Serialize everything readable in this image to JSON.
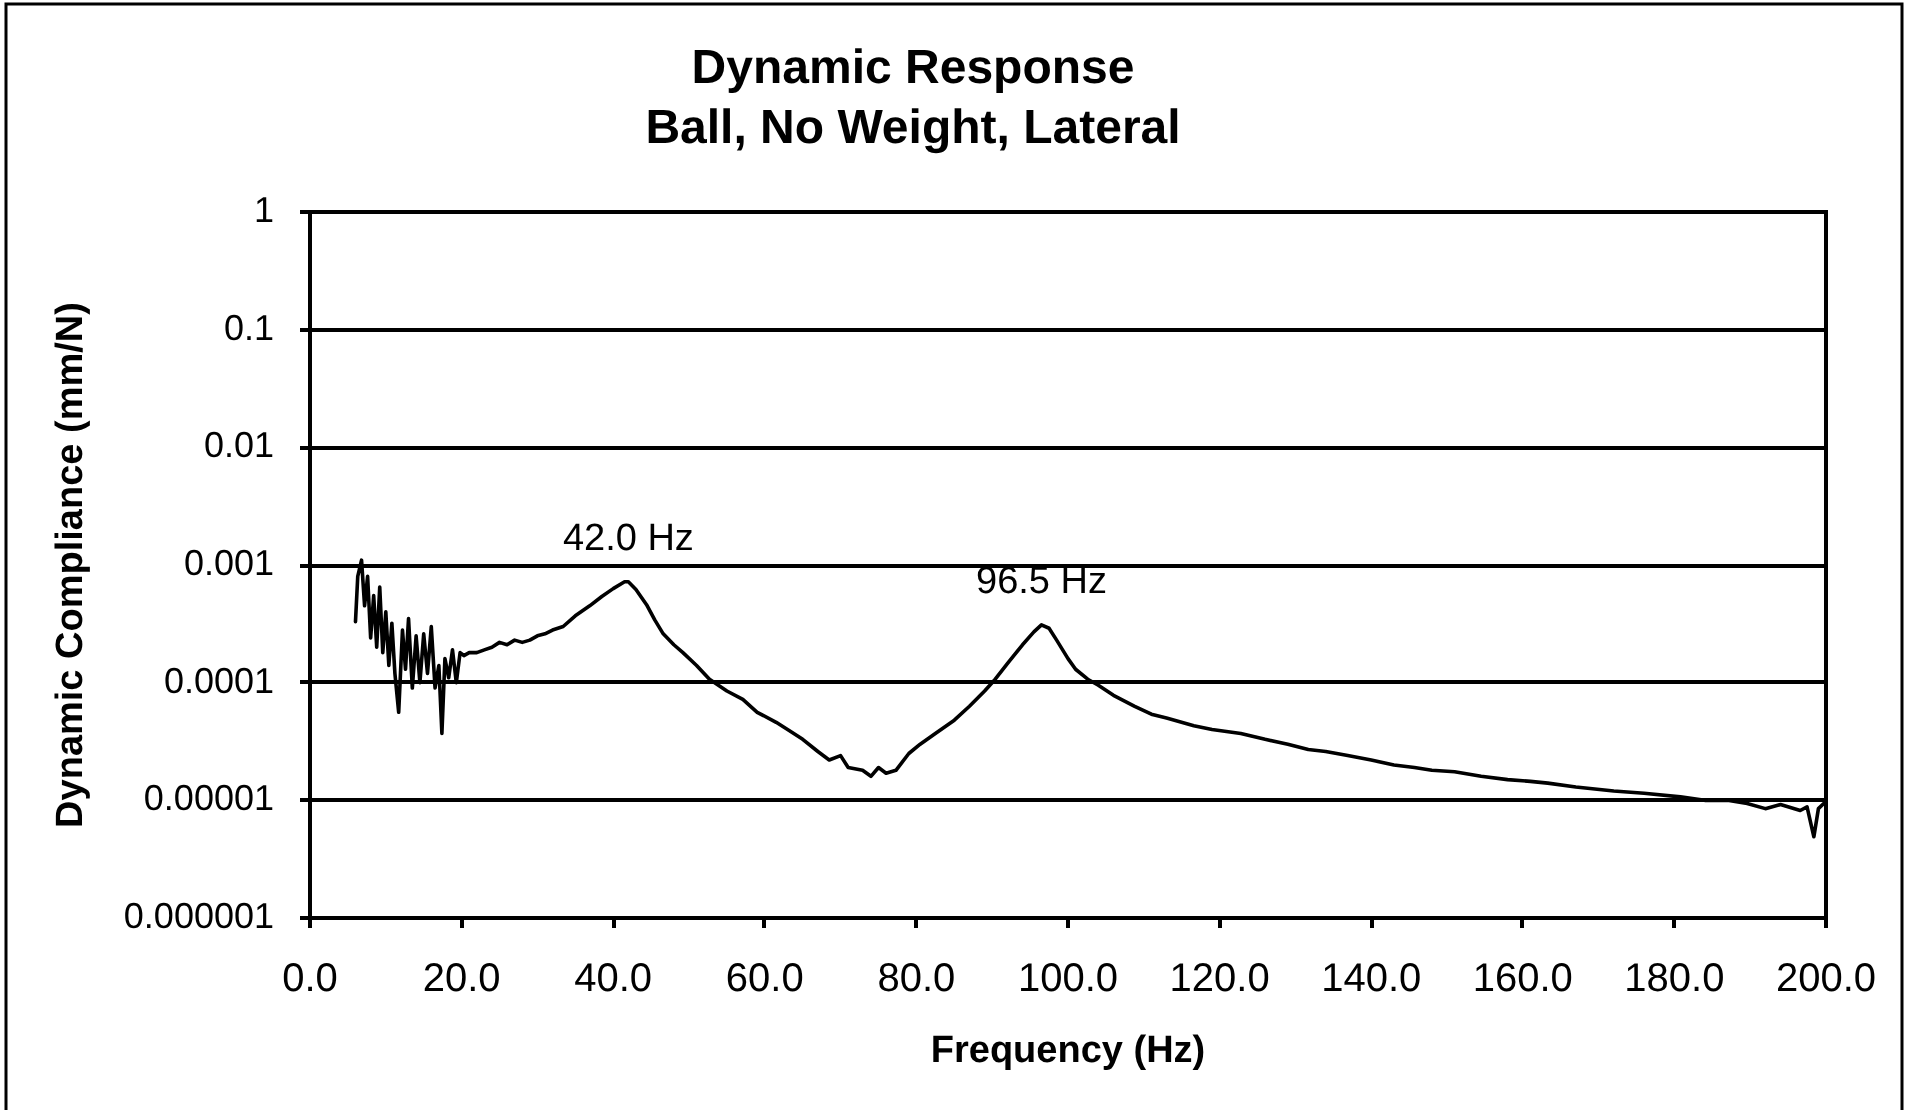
{
  "chart_data": {
    "type": "line",
    "title": "Dynamic Response",
    "subtitle": "Ball, No Weight, Lateral",
    "xlabel": "Frequency (Hz)",
    "ylabel": "Dynamic Compliance (mm/N)",
    "x": [
      6.0,
      6.3,
      6.8,
      7.2,
      7.6,
      8.0,
      8.4,
      8.8,
      9.2,
      9.6,
      10.0,
      10.4,
      10.8,
      11.2,
      11.7,
      12.2,
      12.6,
      13.0,
      13.5,
      14.0,
      14.5,
      15.0,
      15.5,
      16.0,
      16.5,
      17.0,
      17.4,
      17.8,
      18.3,
      18.8,
      19.3,
      19.8,
      20.3,
      21,
      22,
      23,
      24,
      25,
      26,
      27,
      28,
      29,
      30,
      31,
      32,
      33.4,
      35,
      36.9,
      38.5,
      40,
      41.5,
      42,
      43,
      44.4,
      45.5,
      46.6,
      48,
      49.2,
      51,
      52.7,
      55,
      57.1,
      59,
      61.5,
      63,
      65,
      67,
      68.5,
      70,
      71,
      72.9,
      74,
      75,
      76,
      77.3,
      79,
      80.5,
      82.5,
      85,
      87,
      89,
      90.4,
      92,
      94,
      95.5,
      96.5,
      97.5,
      98.5,
      100,
      101,
      102.6,
      104,
      106,
      108.8,
      111,
      113,
      116.6,
      119,
      122.8,
      126,
      129,
      131.7,
      134,
      136.9,
      140,
      143,
      145.7,
      148,
      151,
      154.5,
      158,
      161,
      163.3,
      167,
      172,
      176,
      180.8,
      184,
      187,
      189.6,
      192,
      194,
      196.6,
      197.5,
      198.4,
      199,
      199.7
    ],
    "values": [
      0.00033,
      0.0008,
      0.0011,
      0.00045,
      0.0008,
      0.00024,
      0.00055,
      0.0002,
      0.00065,
      0.00018,
      0.0004,
      0.00014,
      0.00032,
      0.00012,
      5.6e-05,
      0.00028,
      0.00013,
      0.00035,
      9e-05,
      0.00025,
      0.0001,
      0.00026,
      0.00012,
      0.0003,
      9e-05,
      0.00014,
      3.7e-05,
      0.00016,
      0.00011,
      0.00019,
      0.0001,
      0.00018,
      0.00017,
      0.00018,
      0.00018,
      0.00019,
      0.0002,
      0.00022,
      0.00021,
      0.00023,
      0.00022,
      0.00023,
      0.00025,
      0.00026,
      0.00028,
      0.0003,
      0.00037,
      0.00045,
      0.00054,
      0.00063,
      0.00072,
      0.00072,
      0.00062,
      0.00046,
      0.00034,
      0.00026,
      0.00021,
      0.00018,
      0.00014,
      0.000107,
      8.5e-05,
      7.2e-05,
      5.6e-05,
      4.6e-05,
      4e-05,
      3.3e-05,
      2.6e-05,
      2.2e-05,
      2.4e-05,
      1.9e-05,
      1.8e-05,
      1.6e-05,
      1.9e-05,
      1.7e-05,
      1.8e-05,
      2.5e-05,
      3e-05,
      3.7e-05,
      4.8e-05,
      6.3e-05,
      8.5e-05,
      0.000107,
      0.000145,
      0.00021,
      0.00027,
      0.00031,
      0.00029,
      0.00023,
      0.00016,
      0.00013,
      0.000107,
      9.5e-05,
      7.8e-05,
      6.3e-05,
      5.4e-05,
      5e-05,
      4.3e-05,
      4e-05,
      3.7e-05,
      3.3e-05,
      3e-05,
      2.7e-05,
      2.6e-05,
      2.4e-05,
      2.2e-05,
      2e-05,
      1.9e-05,
      1.8e-05,
      1.75e-05,
      1.6e-05,
      1.5e-05,
      1.45e-05,
      1.4e-05,
      1.3e-05,
      1.2e-05,
      1.15e-05,
      1.07e-05,
      1e-05,
      1e-05,
      9.4e-06,
      8.5e-06,
      9.2e-06,
      8.2e-06,
      8.8e-06,
      4.9e-06,
      8.5e-06,
      9.4e-06
    ],
    "color": "#000000",
    "marker": "none",
    "log": "y",
    "grid": "y",
    "xlim": [
      0,
      200
    ],
    "xticks": [
      {
        "value": 0,
        "label": "0.0"
      },
      {
        "value": 20,
        "label": "20.0"
      },
      {
        "value": 40,
        "label": "40.0"
      },
      {
        "value": 60,
        "label": "60.0"
      },
      {
        "value": 80,
        "label": "80.0"
      },
      {
        "value": 100,
        "label": "100.0"
      },
      {
        "value": 120,
        "label": "120.0"
      },
      {
        "value": 140,
        "label": "140.0"
      },
      {
        "value": 160,
        "label": "160.0"
      },
      {
        "value": 180,
        "label": "180.0"
      },
      {
        "value": 200,
        "label": "200.0"
      }
    ],
    "ylim": [
      1e-06,
      1
    ],
    "yticks": [
      {
        "value": 1e-06,
        "label": "0.000001"
      },
      {
        "value": 1e-05,
        "label": "0.00001"
      },
      0.0001,
      0.001,
      0.01,
      0.1,
      1
    ],
    "annotations": [
      {
        "text": "42.0 Hz",
        "x": 42,
        "y": 0.00072
      },
      {
        "text": "96.5 Hz",
        "x": 96.5,
        "y": 0.00031
      }
    ]
  }
}
